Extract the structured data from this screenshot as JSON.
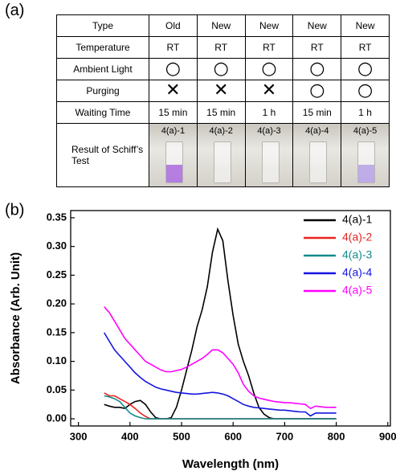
{
  "panel_a_label": "(a)",
  "table": {
    "rows": [
      [
        "Type",
        "Old",
        "New",
        "New",
        "New",
        "New"
      ],
      [
        "Temperature",
        "RT",
        "RT",
        "RT",
        "RT",
        "RT"
      ],
      [
        "Ambient Light",
        "○",
        "○",
        "○",
        "○",
        "○"
      ],
      [
        "Purging",
        "✕",
        "✕",
        "✕",
        "○",
        "○"
      ],
      [
        "Waiting Time",
        "15 min",
        "15 min",
        "1 h",
        "15 min",
        "1 h"
      ],
      [
        "Result of Schiff’s Test",
        "4(a)-1",
        "4(a)-2",
        "4(a)-3",
        "4(a)-4",
        "4(a)-5"
      ]
    ]
  },
  "chart_data": {
    "type": "line",
    "panel_label": "(b)",
    "x_label": "Wavelength (nm)",
    "y_label": "Absorbance (Arb. Unit)",
    "xlim": [
      285,
      905
    ],
    "ylim": [
      -0.0125,
      0.3625
    ],
    "xticks": [
      300,
      400,
      500,
      600,
      700,
      800,
      900
    ],
    "yticks": [
      {
        "value": 0,
        "label": "0.00"
      },
      {
        "value": 0.05,
        "label": "0.05"
      },
      {
        "value": 0.1,
        "label": "0.10"
      },
      {
        "value": 0.15,
        "label": "0.15"
      },
      {
        "value": 0.2,
        "label": "0.20"
      },
      {
        "value": 0.25,
        "label": "0.25"
      },
      {
        "value": 0.3,
        "label": "0.30"
      },
      {
        "value": 0.35,
        "label": "0.35"
      }
    ],
    "legend": "top-right",
    "x": [
      350,
      360,
      370,
      380,
      390,
      400,
      410,
      420,
      430,
      440,
      450,
      460,
      470,
      480,
      490,
      500,
      510,
      520,
      530,
      540,
      550,
      560,
      570,
      580,
      590,
      600,
      610,
      620,
      630,
      640,
      650,
      660,
      670,
      680,
      690,
      700,
      710,
      720,
      730,
      740,
      750,
      760,
      770,
      780,
      790,
      800
    ],
    "series": [
      {
        "name": "4(a)-1",
        "color": "#000000",
        "values": [
          0.025,
          0.022,
          0.02,
          0.02,
          0.018,
          0.025,
          0.03,
          0.032,
          0.025,
          0.012,
          0.002,
          0,
          0,
          0.002,
          0.02,
          0.05,
          0.085,
          0.12,
          0.16,
          0.19,
          0.23,
          0.29,
          0.33,
          0.31,
          0.24,
          0.18,
          0.13,
          0.1,
          0.075,
          0.045,
          0.02,
          0.008,
          0.002,
          0,
          0,
          0,
          0,
          0,
          0,
          0,
          0,
          0,
          0,
          0,
          0,
          0
        ]
      },
      {
        "name": "4(a)-2",
        "color": "#e8231f",
        "values": [
          0.045,
          0.04,
          0.04,
          0.035,
          0.03,
          0.025,
          0.018,
          0.01,
          0.004,
          0,
          0,
          0,
          0,
          0,
          0,
          0,
          0,
          0,
          0,
          0,
          0,
          0,
          0,
          0,
          0,
          0,
          0,
          0,
          0,
          0,
          0,
          0,
          0,
          0,
          0,
          0,
          0,
          0,
          0,
          0,
          0,
          0,
          0,
          0,
          0,
          0
        ]
      },
      {
        "name": "4(a)-3",
        "color": "#138a8a",
        "values": [
          0.04,
          0.038,
          0.035,
          0.03,
          0.02,
          0.01,
          0.005,
          0.002,
          0,
          0,
          0,
          0,
          0,
          0,
          0,
          0,
          0,
          0,
          0,
          0,
          0,
          0,
          0,
          0,
          0,
          0,
          0,
          0,
          0,
          0,
          0,
          0,
          0,
          0,
          0,
          0,
          0,
          0,
          0,
          0,
          0,
          0,
          0,
          0,
          0,
          0
        ]
      },
      {
        "name": "4(a)-4",
        "color": "#1515e0",
        "values": [
          0.15,
          0.135,
          0.12,
          0.11,
          0.1,
          0.09,
          0.08,
          0.072,
          0.065,
          0.06,
          0.055,
          0.052,
          0.05,
          0.048,
          0.046,
          0.045,
          0.044,
          0.043,
          0.043,
          0.044,
          0.045,
          0.046,
          0.045,
          0.043,
          0.04,
          0.035,
          0.03,
          0.025,
          0.022,
          0.02,
          0.019,
          0.018,
          0.017,
          0.016,
          0.015,
          0.015,
          0.014,
          0.013,
          0.012,
          0.012,
          0.005,
          0.01,
          0.01,
          0.01,
          0.01,
          0.01
        ]
      },
      {
        "name": "4(a)-5",
        "color": "#ff00ff",
        "values": [
          0.195,
          0.185,
          0.17,
          0.155,
          0.14,
          0.13,
          0.12,
          0.11,
          0.1,
          0.095,
          0.09,
          0.085,
          0.082,
          0.082,
          0.084,
          0.086,
          0.09,
          0.095,
          0.1,
          0.105,
          0.112,
          0.12,
          0.12,
          0.115,
          0.105,
          0.095,
          0.08,
          0.06,
          0.048,
          0.04,
          0.036,
          0.034,
          0.032,
          0.03,
          0.029,
          0.028,
          0.028,
          0.027,
          0.026,
          0.025,
          0.018,
          0.022,
          0.021,
          0.02,
          0.02,
          0.02
        ]
      }
    ]
  }
}
